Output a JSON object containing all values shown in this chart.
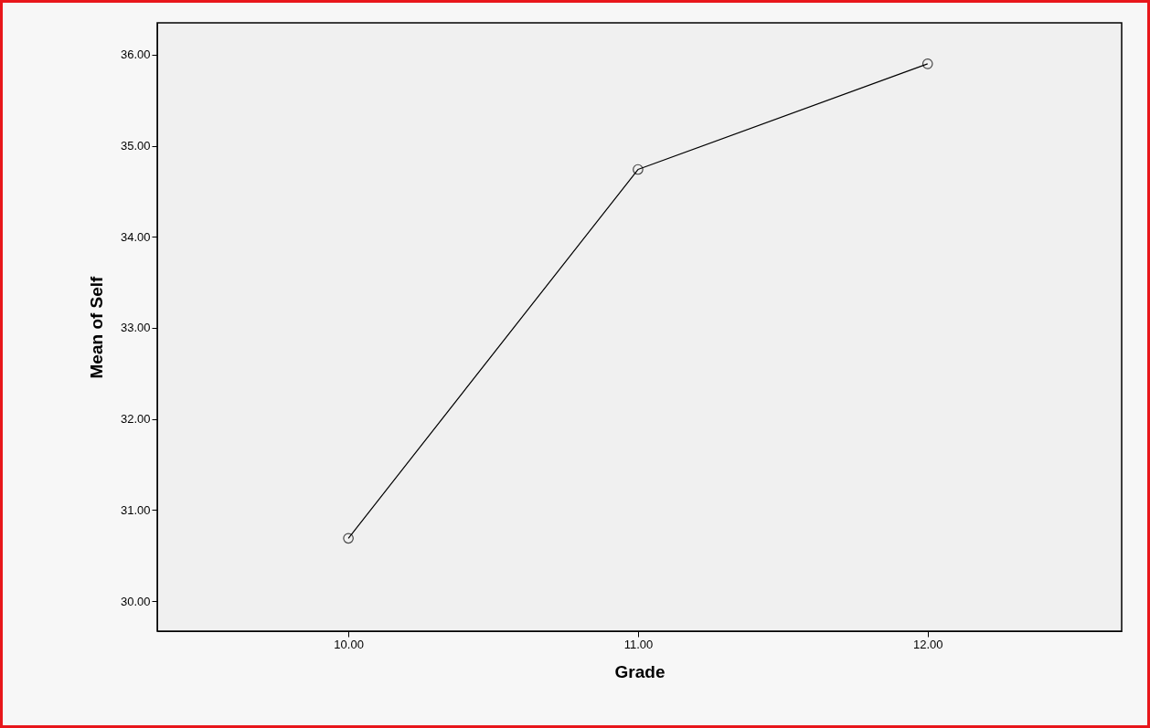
{
  "chart_data": {
    "type": "line",
    "xlabel": "Grade",
    "ylabel": "Mean of Self",
    "x": [
      10,
      11,
      12
    ],
    "series": [
      {
        "color": "#000000",
        "values": [
          30.69,
          34.74,
          35.9
        ]
      }
    ],
    "xlim": [
      9.34,
      12.67
    ],
    "xticks": [
      {
        "value": 10,
        "label": "10.00"
      },
      {
        "value": 11,
        "label": "11.00"
      },
      {
        "value": 12,
        "label": "12.00"
      }
    ],
    "ylim": [
      29.67,
      36.35
    ],
    "yticks": [
      {
        "value": 30,
        "label": "30.00"
      },
      {
        "value": 31,
        "label": "31.00"
      },
      {
        "value": 32,
        "label": "32.00"
      },
      {
        "value": 33,
        "label": "33.00"
      },
      {
        "value": 34,
        "label": "34.00"
      },
      {
        "value": 35,
        "label": "35.00"
      },
      {
        "value": 36,
        "label": "36.00"
      }
    ],
    "grid": false,
    "legend": false,
    "marker": "circle",
    "line_style": "solid"
  }
}
